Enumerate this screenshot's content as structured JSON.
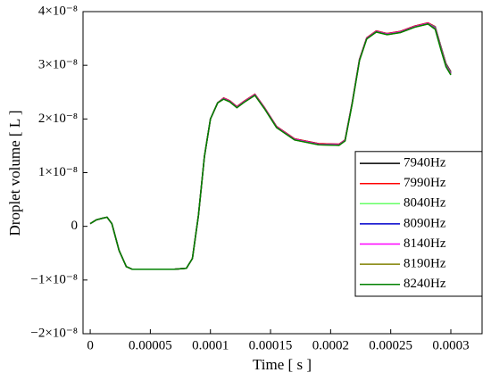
{
  "chart_data": {
    "type": "line",
    "xlabel": "Time [ s ]",
    "ylabel": "Droplet volume [ L ]",
    "x": [
      0,
      5e-06,
      1e-05,
      1.4e-05,
      1.8e-05,
      2.4e-05,
      3e-05,
      3.5e-05,
      5e-05,
      7e-05,
      8e-05,
      8.5e-05,
      9e-05,
      9.5e-05,
      0.0001,
      0.000106,
      0.000111,
      0.000116,
      0.000122,
      0.000128,
      0.000137,
      0.000145,
      0.000155,
      0.00017,
      0.00019,
      0.000207,
      0.000212,
      0.000218,
      0.000224,
      0.00023,
      0.000238,
      0.000247,
      0.000258,
      0.00027,
      0.000281,
      0.000287,
      0.000292,
      0.000296,
      0.0003
    ],
    "series": [
      {
        "name": "7940Hz",
        "color": "#000000",
        "values": [
          5e-10,
          1.2e-09,
          1.5e-09,
          1.7e-09,
          5e-10,
          -4.5e-09,
          -7.5e-09,
          -8e-09,
          -8e-09,
          -8e-09,
          -7.8e-09,
          -6e-09,
          2e-09,
          1.3e-08,
          2e-08,
          2.3e-08,
          2.39e-08,
          2.34e-08,
          2.23e-08,
          2.33e-08,
          2.46e-08,
          2.21e-08,
          1.86e-08,
          1.63e-08,
          1.54e-08,
          1.53e-08,
          1.61e-08,
          2.31e-08,
          3.11e-08,
          3.51e-08,
          3.64e-08,
          3.59e-08,
          3.63e-08,
          3.73e-08,
          3.79e-08,
          3.72e-08,
          3.33e-08,
          3.03e-08,
          2.88e-08
        ]
      },
      {
        "name": "7990Hz",
        "color": "#ff0000",
        "values": [
          5e-10,
          1.2e-09,
          1.5e-09,
          1.7e-09,
          5e-10,
          -4.5e-09,
          -7.5e-09,
          -8e-09,
          -8e-09,
          -8e-09,
          -7.8e-09,
          -6e-09,
          2e-09,
          1.3e-08,
          2e-08,
          2.3e-08,
          2.39e-08,
          2.34e-08,
          2.23e-08,
          2.33e-08,
          2.46e-08,
          2.21e-08,
          1.86e-08,
          1.63e-08,
          1.54e-08,
          1.53e-08,
          1.61e-08,
          2.31e-08,
          3.11e-08,
          3.51e-08,
          3.64e-08,
          3.59e-08,
          3.63e-08,
          3.73e-08,
          3.79e-08,
          3.72e-08,
          3.32e-08,
          3.02e-08,
          2.87e-08
        ]
      },
      {
        "name": "8040Hz",
        "color": "#66ff66",
        "values": [
          5e-10,
          1.2e-09,
          1.5e-09,
          1.7e-09,
          5e-10,
          -4.5e-09,
          -7.5e-09,
          -8e-09,
          -8e-09,
          -8e-09,
          -7.8e-09,
          -6e-09,
          2e-09,
          1.3e-08,
          2e-08,
          2.3e-08,
          2.38e-08,
          2.33e-08,
          2.22e-08,
          2.32e-08,
          2.45e-08,
          2.2e-08,
          1.85e-08,
          1.62e-08,
          1.53e-08,
          1.52e-08,
          1.6e-08,
          2.3e-08,
          3.1e-08,
          3.5e-08,
          3.63e-08,
          3.58e-08,
          3.62e-08,
          3.72e-08,
          3.78e-08,
          3.71e-08,
          3.31e-08,
          3.01e-08,
          2.86e-08
        ]
      },
      {
        "name": "8090Hz",
        "color": "#0000cc",
        "values": [
          5e-10,
          1.2e-09,
          1.5e-09,
          1.7e-09,
          5e-10,
          -4.5e-09,
          -7.5e-09,
          -8e-09,
          -8e-09,
          -8e-09,
          -7.8e-09,
          -6e-09,
          2e-09,
          1.3e-08,
          2e-08,
          2.3e-08,
          2.38e-08,
          2.33e-08,
          2.22e-08,
          2.32e-08,
          2.45e-08,
          2.2e-08,
          1.85e-08,
          1.62e-08,
          1.53e-08,
          1.52e-08,
          1.6e-08,
          2.3e-08,
          3.1e-08,
          3.5e-08,
          3.63e-08,
          3.58e-08,
          3.62e-08,
          3.72e-08,
          3.78e-08,
          3.7e-08,
          3.3e-08,
          3e-08,
          2.85e-08
        ]
      },
      {
        "name": "8140Hz",
        "color": "#ff00ff",
        "values": [
          5e-10,
          1.2e-09,
          1.5e-09,
          1.7e-09,
          5e-10,
          -4.5e-09,
          -7.5e-09,
          -8e-09,
          -8e-09,
          -8e-09,
          -7.8e-09,
          -6e-09,
          2e-09,
          1.3e-08,
          2e-08,
          2.3e-08,
          2.38e-08,
          2.33e-08,
          2.22e-08,
          2.32e-08,
          2.45e-08,
          2.2e-08,
          1.85e-08,
          1.62e-08,
          1.53e-08,
          1.52e-08,
          1.6e-08,
          2.3e-08,
          3.1e-08,
          3.5e-08,
          3.63e-08,
          3.58e-08,
          3.62e-08,
          3.72e-08,
          3.78e-08,
          3.69e-08,
          3.29e-08,
          2.99e-08,
          2.84e-08
        ]
      },
      {
        "name": "8190Hz",
        "color": "#808000",
        "values": [
          5e-10,
          1.2e-09,
          1.5e-09,
          1.7e-09,
          5e-10,
          -4.5e-09,
          -7.5e-09,
          -8e-09,
          -8e-09,
          -8e-09,
          -7.8e-09,
          -6e-09,
          2e-09,
          1.3e-08,
          2e-08,
          2.3e-08,
          2.37e-08,
          2.32e-08,
          2.21e-08,
          2.31e-08,
          2.44e-08,
          2.19e-08,
          1.84e-08,
          1.61e-08,
          1.52e-08,
          1.51e-08,
          1.59e-08,
          2.29e-08,
          3.09e-08,
          3.49e-08,
          3.62e-08,
          3.57e-08,
          3.61e-08,
          3.71e-08,
          3.77e-08,
          3.68e-08,
          3.28e-08,
          2.98e-08,
          2.83e-08
        ]
      },
      {
        "name": "8240Hz",
        "color": "#008000",
        "values": [
          5e-10,
          1.2e-09,
          1.5e-09,
          1.7e-09,
          5e-10,
          -4.5e-09,
          -7.5e-09,
          -8e-09,
          -8e-09,
          -8e-09,
          -7.8e-09,
          -6e-09,
          2e-09,
          1.3e-08,
          2e-08,
          2.3e-08,
          2.37e-08,
          2.32e-08,
          2.21e-08,
          2.31e-08,
          2.44e-08,
          2.19e-08,
          1.84e-08,
          1.61e-08,
          1.52e-08,
          1.51e-08,
          1.59e-08,
          2.29e-08,
          3.09e-08,
          3.49e-08,
          3.62e-08,
          3.57e-08,
          3.61e-08,
          3.71e-08,
          3.77e-08,
          3.67e-08,
          3.27e-08,
          2.97e-08,
          2.82e-08
        ]
      }
    ],
    "xlim": [
      -6e-06,
      0.000326
    ],
    "xticks": [
      0,
      5e-05,
      0.0001,
      0.00015,
      0.0002,
      0.00025,
      0.0003
    ],
    "ylim": [
      -2e-08,
      4e-08
    ],
    "yticks": [
      {
        "value": -2e-08,
        "label": "−2×10⁻⁸"
      },
      {
        "value": -1e-08,
        "label": "−1×10⁻⁸"
      },
      0,
      {
        "value": 1e-08,
        "label": "1×10⁻⁸"
      },
      {
        "value": 2e-08,
        "label": "2×10⁻⁸"
      },
      {
        "value": 3e-08,
        "label": "3×10⁻⁸"
      },
      {
        "value": 4e-08,
        "label": "4×10⁻⁸"
      }
    ],
    "legend": "lower right"
  }
}
